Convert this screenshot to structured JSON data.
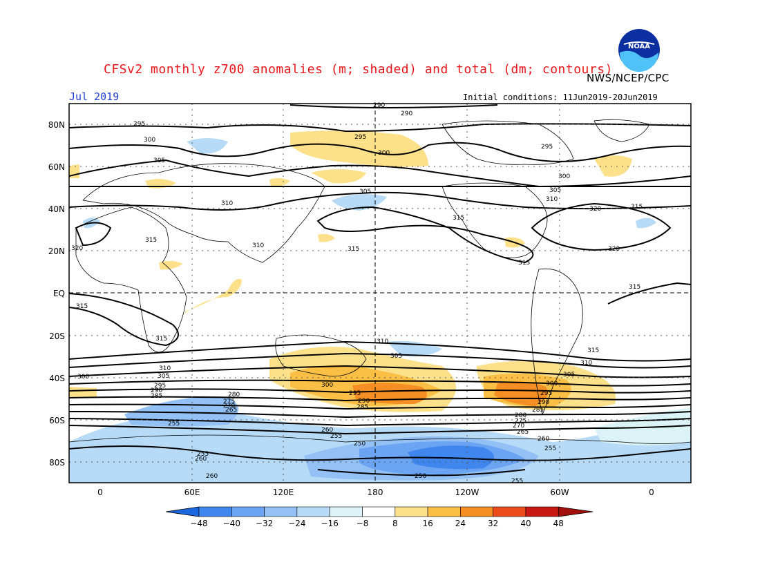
{
  "title": "CFSv2 monthly z700 anomalies (m; shaded) and total (dm; contours)",
  "organization": "NWS/NCEP/CPC",
  "logo_text": "NOAA",
  "period": "Jul 2019",
  "initial_conditions": "Initial conditions: 11Jun2019-20Jun2019",
  "lat_labels": [
    "80N",
    "60N",
    "40N",
    "20N",
    "EQ",
    "20S",
    "40S",
    "60S",
    "80S"
  ],
  "lon_labels": [
    "0",
    "60E",
    "120E",
    "180",
    "120W",
    "60W",
    "0"
  ],
  "colorbar": {
    "ticks": [
      "-48",
      "-40",
      "-32",
      "-24",
      "-16",
      "-8",
      "8",
      "16",
      "24",
      "32",
      "40",
      "48"
    ],
    "colors": [
      "#1c68e0",
      "#3f86ee",
      "#6aa4f2",
      "#93c0f5",
      "#b7dbf6",
      "#dbf3f7",
      "#ffffff",
      "#fde08a",
      "#fbbf45",
      "#f58e23",
      "#ea4a1c",
      "#c81813",
      "#a3110f"
    ]
  },
  "contour_labels": [
    "295",
    "300",
    "305",
    "310",
    "315",
    "320",
    "290",
    "285",
    "280",
    "275",
    "270",
    "265",
    "260",
    "255",
    "250"
  ]
}
